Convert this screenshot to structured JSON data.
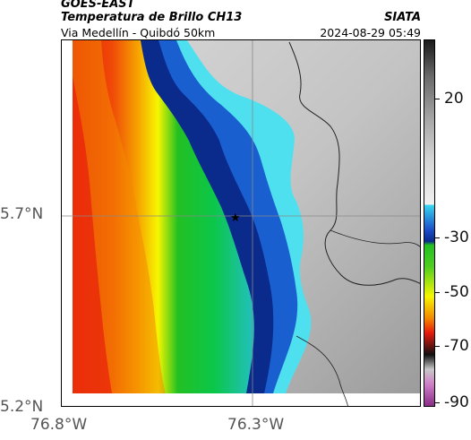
{
  "header": {
    "satellite": "GOES-EAST",
    "product": "Temperatura de Brillo CH13",
    "area": "Via Medellín - Quibdó 50km",
    "org": "SIATA",
    "timestamp": "2024-08-29 05:49"
  },
  "axes": {
    "y_ticks": [
      "5.7°N",
      "5.2°N"
    ],
    "x_ticks": [
      "76.8°W",
      "76.3°W"
    ]
  },
  "colorbar": {
    "labels": [
      "20",
      "-30",
      "-50",
      "-70",
      "-90"
    ],
    "colors": {
      "gray_top": "#1a1a1a",
      "gray_bottom": "#f2f2f2",
      "cyan": "#4fe0f0",
      "blue": "#0a2a8c",
      "green": "#22c022",
      "yellow": "#f6f600",
      "orange": "#f48a00",
      "red": "#e8190c",
      "black": "#111111",
      "magenta": "#a0409c"
    }
  },
  "map": {
    "marker": "★",
    "colors": {
      "land_gray": "#bdbdbd",
      "border_line": "#222222",
      "grid_line": "#888888"
    }
  }
}
